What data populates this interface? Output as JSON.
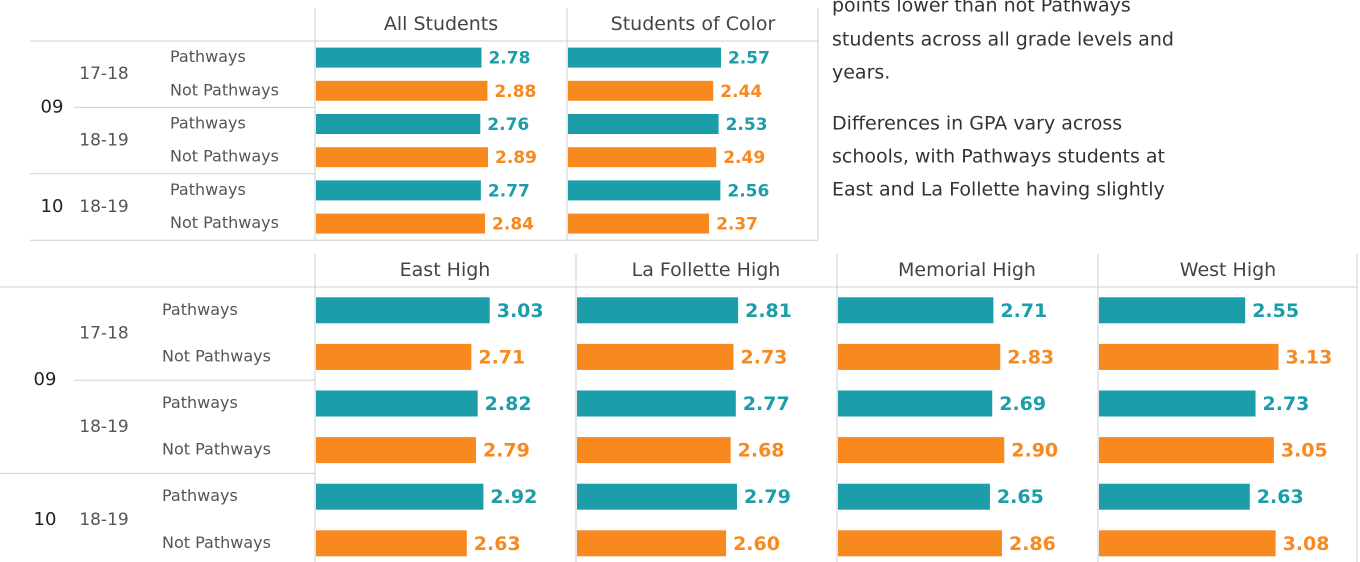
{
  "chart_data": [
    {
      "type": "bar",
      "grades": [
        {
          "label": "09",
          "years": [
            {
              "label": "17-18",
              "rows": [
                "Pathways",
                "Not Pathways"
              ]
            },
            {
              "label": "18-19",
              "rows": [
                "Pathways",
                "Not Pathways"
              ]
            }
          ]
        },
        {
          "label": "10",
          "years": [
            {
              "label": "18-19",
              "rows": [
                "Pathways",
                "Not Pathways"
              ]
            }
          ]
        }
      ],
      "colors": [
        "#1b9ea9",
        "#f7891f"
      ],
      "xlim": [
        0,
        4.2
      ],
      "series": [
        {
          "name": "All Students",
          "values": [
            2.78,
            2.88,
            2.76,
            2.89,
            2.77,
            2.84
          ],
          "value_labels": [
            "2.78",
            "2.88",
            "2.76",
            "2.89",
            "2.77",
            "2.84"
          ]
        },
        {
          "name": "Students of Color",
          "values": [
            2.57,
            2.44,
            2.53,
            2.49,
            2.56,
            2.37
          ],
          "value_labels": [
            "2.57",
            "2.44",
            "2.53",
            "2.49",
            "2.56",
            "2.37"
          ]
        }
      ]
    },
    {
      "type": "bar",
      "grades": [
        {
          "label": "09",
          "years": [
            {
              "label": "17-18",
              "rows": [
                "Pathways",
                "Not Pathways"
              ]
            },
            {
              "label": "18-19",
              "rows": [
                "Pathways",
                "Not Pathways"
              ]
            }
          ]
        },
        {
          "label": "10",
          "years": [
            {
              "label": "18-19",
              "rows": [
                "Pathways",
                "Not Pathways"
              ]
            }
          ]
        }
      ],
      "colors": [
        "#1b9ea9",
        "#f7891f"
      ],
      "xlim": [
        0,
        4.5
      ],
      "series": [
        {
          "name": "East High",
          "values": [
            3.03,
            2.71,
            2.82,
            2.79,
            2.92,
            2.63
          ],
          "value_labels": [
            "3.03",
            "2.71",
            "2.82",
            "2.79",
            "2.92",
            "2.63"
          ]
        },
        {
          "name": "La Follette High",
          "values": [
            2.81,
            2.73,
            2.77,
            2.68,
            2.79,
            2.6
          ],
          "value_labels": [
            "2.81",
            "2.73",
            "2.77",
            "2.68",
            "2.79",
            "2.60"
          ]
        },
        {
          "name": "Memorial High",
          "values": [
            2.71,
            2.83,
            2.69,
            2.9,
            2.65,
            2.86
          ],
          "value_labels": [
            "2.71",
            "2.83",
            "2.69",
            "2.90",
            "2.65",
            "2.86"
          ]
        },
        {
          "name": "West High",
          "values": [
            2.55,
            3.13,
            2.73,
            3.05,
            2.63,
            3.08
          ],
          "value_labels": [
            "2.55",
            "3.13",
            "2.73",
            "3.05",
            "2.63",
            "3.08"
          ]
        }
      ]
    }
  ],
  "text": {
    "paragraphs": [
      [
        "points lower than not Pathways",
        "students across all grade levels and",
        "years."
      ],
      [
        "Differences in GPA vary across",
        "schools, with Pathways students at",
        "East and La Follette having slightly"
      ]
    ]
  }
}
